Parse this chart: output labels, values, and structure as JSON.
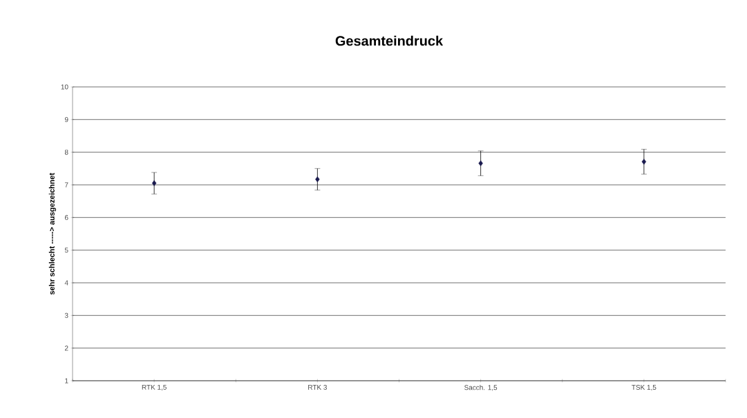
{
  "chart_data": {
    "type": "scatter",
    "title": "Gesamteindruck",
    "ylabel": "sehr schlecht -----> ausgezeichnet",
    "categories": [
      "RTK 1,5",
      "RTK 3",
      "Sacch. 1,5",
      "TSK 1,5"
    ],
    "values": [
      7.05,
      7.17,
      7.66,
      7.71
    ],
    "errors": [
      0.33,
      0.33,
      0.38,
      0.38
    ],
    "color": "#1a1a4e",
    "marker": "diamond",
    "ylim": [
      1,
      10
    ],
    "yticks": [
      1,
      2,
      3,
      4,
      5,
      6,
      7,
      8,
      9,
      10
    ],
    "grid": "y"
  }
}
